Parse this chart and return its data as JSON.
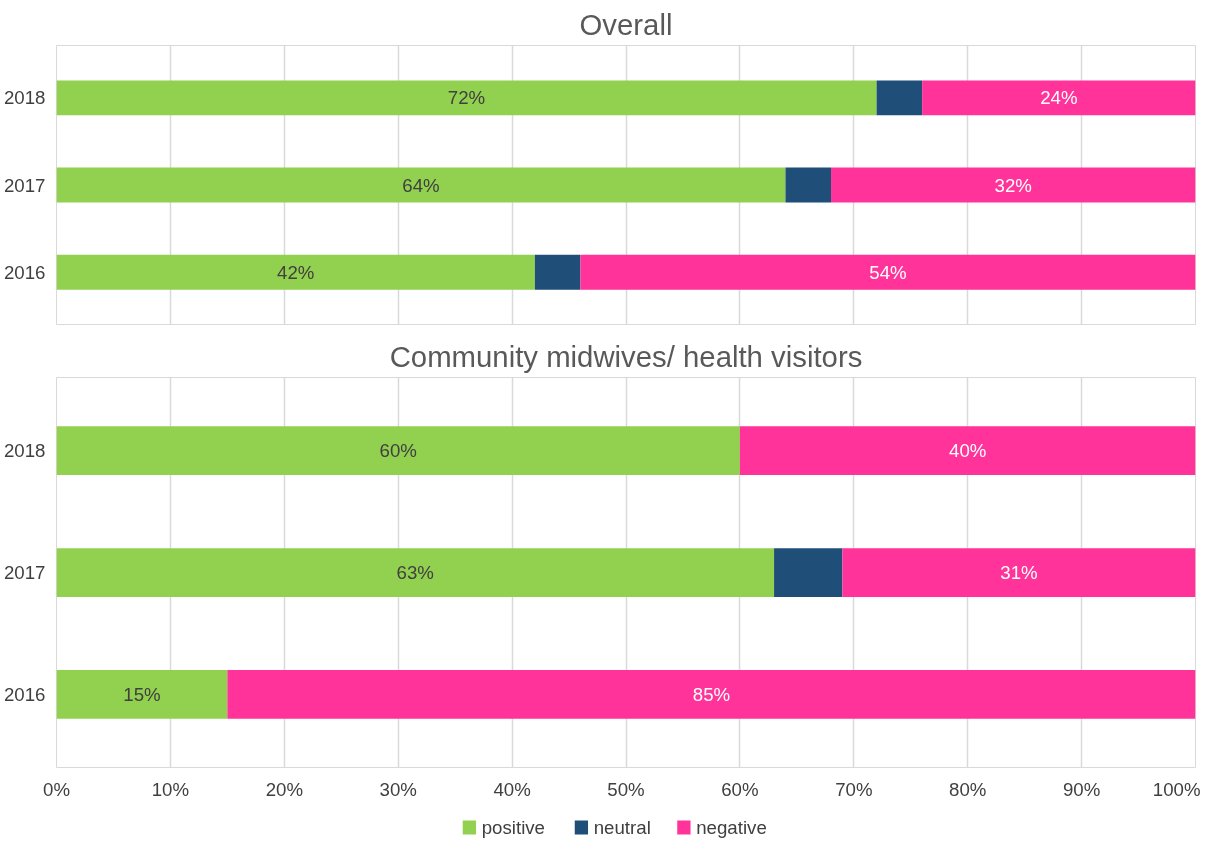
{
  "chart_data": [
    {
      "type": "bar",
      "orientation": "horizontal",
      "stacked": true,
      "title": "Overall",
      "categories": [
        "2018",
        "2017",
        "2016"
      ],
      "series": [
        {
          "color": "#92d050",
          "values": [
            72,
            64,
            42
          ],
          "value_labels": [
            "72%",
            "64%",
            "42%"
          ]
        },
        {
          "color": "#1f4e79",
          "values": [
            4,
            4,
            4
          ],
          "value_labels": [
            null,
            null,
            null
          ]
        },
        {
          "color": "#ff3399",
          "values": [
            24,
            32,
            54
          ],
          "value_labels": [
            "24%",
            "32%",
            "54%"
          ]
        }
      ],
      "xlim": [
        0,
        100
      ],
      "xticks": [
        {
          "value": 0,
          "label": null
        },
        {
          "value": 10,
          "label": null
        },
        {
          "value": 20,
          "label": null
        },
        {
          "value": 30,
          "label": null
        },
        {
          "value": 40,
          "label": null
        },
        {
          "value": 50,
          "label": null
        },
        {
          "value": 60,
          "label": null
        },
        {
          "value": 70,
          "label": null
        },
        {
          "value": 80,
          "label": null
        },
        {
          "value": 90,
          "label": null
        },
        {
          "value": 100,
          "label": null
        }
      ],
      "grid": "x",
      "tick_labels": "y",
      "legend": false
    },
    {
      "type": "bar",
      "orientation": "horizontal",
      "stacked": true,
      "title": "Community midwives/ health visitors",
      "categories": [
        "2018",
        "2017",
        "2016"
      ],
      "series": [
        {
          "name": "positive",
          "color": "#92d050",
          "values": [
            60,
            63,
            15
          ],
          "value_labels": [
            "60%",
            "63%",
            "15%"
          ]
        },
        {
          "name": "neutral",
          "color": "#1f4e79",
          "values": [
            0,
            6,
            0
          ],
          "value_labels": [
            null,
            null,
            null
          ]
        },
        {
          "name": "negative",
          "color": "#ff3399",
          "values": [
            40,
            31,
            85
          ],
          "value_labels": [
            "40%",
            "31%",
            "85%"
          ]
        }
      ],
      "xlim": [
        0,
        100
      ],
      "xticks": [
        {
          "value": 0,
          "label": "0%"
        },
        {
          "value": 10,
          "label": "10%"
        },
        {
          "value": 20,
          "label": "20%"
        },
        {
          "value": 30,
          "label": "30%"
        },
        {
          "value": 40,
          "label": "40%"
        },
        {
          "value": 50,
          "label": "50%"
        },
        {
          "value": 60,
          "label": "60%"
        },
        {
          "value": 70,
          "label": "70%"
        },
        {
          "value": 80,
          "label": "80%"
        },
        {
          "value": 90,
          "label": "90%"
        },
        {
          "value": 100,
          "label": "100%"
        }
      ],
      "grid": "x",
      "legend": "bottom"
    }
  ]
}
